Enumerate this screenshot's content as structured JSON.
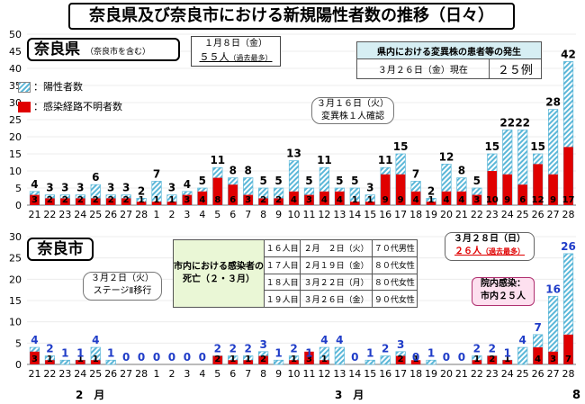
{
  "title": "奈良県及び奈良市における新規陽性者数の推移（日々）",
  "legend": {
    "positive": "：陽性者数",
    "unknown": "：感染経路不明者数"
  },
  "colors": {
    "unknown": "#e00000",
    "positive_stripe": "#5bb7d8",
    "positive_bg": "#ffffff",
    "label_blue": "#1f3cc8"
  },
  "months": [
    "2　月",
    "3　月"
  ],
  "page_number": "8",
  "prefecture": {
    "name": "奈良県",
    "sub": "（奈良市を含む）",
    "max_line1": "１月８日（金）",
    "max_value": "５５人",
    "max_suffix": "（過去最多）",
    "variant_table": {
      "header": "県内における変異株の患者等の発生",
      "date": "３月２６日（金）現在",
      "count": "２５例"
    },
    "callout_line1": "３月１６日（火）",
    "callout_line2": "変異株１人確認"
  },
  "city": {
    "name": "奈良市",
    "callout_line1": "３月２日（火）",
    "callout_line2": "ステージⅡ移行",
    "death_header": "市内における感染者の死亡（２・３月）",
    "deaths": [
      [
        "１６人目",
        "２月　２日（火）",
        "７０代男性"
      ],
      [
        "１７人目",
        "２月１９日（金）",
        "８０代女性"
      ],
      [
        "１８人目",
        "３月２２日（月）",
        "８０代女性"
      ],
      [
        "１９人目",
        "３月２６日（金）",
        "９０代女性"
      ]
    ],
    "day28_line1": "３月２８日（日）",
    "day28_value": "２６人",
    "day28_suffix": "（過去最多）",
    "incluster_line1": "院内感染：",
    "incluster_line2": "市内２５人"
  },
  "chart_data": [
    {
      "type": "bar",
      "title": "奈良県",
      "categories": [
        "21",
        "22",
        "23",
        "24",
        "25",
        "26",
        "27",
        "28",
        "1",
        "2",
        "3",
        "4",
        "5",
        "6",
        "7",
        "8",
        "9",
        "10",
        "11",
        "12",
        "13",
        "14",
        "15",
        "16",
        "17",
        "18",
        "19",
        "20",
        "21",
        "22",
        "23",
        "24",
        "25",
        "26",
        "27",
        "28"
      ],
      "ylim": [
        0,
        50
      ],
      "yticks": [
        0,
        5,
        10,
        15,
        20,
        25,
        30,
        35,
        40,
        45,
        50
      ],
      "series": [
        {
          "name": "陽性者数",
          "values": [
            4,
            3,
            3,
            3,
            6,
            3,
            3,
            2,
            7,
            3,
            4,
            5,
            11,
            8,
            8,
            5,
            5,
            13,
            5,
            11,
            5,
            5,
            3,
            11,
            15,
            7,
            2,
            12,
            8,
            5,
            15,
            22,
            22,
            15,
            28,
            42
          ]
        },
        {
          "name": "感染経路不明者数",
          "values": [
            3,
            2,
            2,
            2,
            2,
            2,
            2,
            1,
            1,
            1,
            3,
            4,
            8,
            6,
            3,
            2,
            2,
            4,
            3,
            4,
            4,
            1,
            1,
            9,
            9,
            4,
            1,
            4,
            4,
            3,
            10,
            9,
            6,
            12,
            9,
            17
          ]
        }
      ]
    },
    {
      "type": "bar",
      "title": "奈良市",
      "categories": [
        "21",
        "22",
        "23",
        "24",
        "25",
        "26",
        "27",
        "28",
        "1",
        "2",
        "3",
        "4",
        "5",
        "6",
        "7",
        "8",
        "9",
        "10",
        "11",
        "12",
        "13",
        "14",
        "15",
        "16",
        "17",
        "18",
        "19",
        "20",
        "21",
        "22",
        "23",
        "24",
        "25",
        "26",
        "27",
        "28"
      ],
      "ylim": [
        0,
        30
      ],
      "yticks": [
        0,
        5,
        10,
        15,
        20,
        25,
        30
      ],
      "series": [
        {
          "name": "陽性者数",
          "values": [
            4,
            2,
            1,
            1,
            4,
            1,
            0,
            0,
            0,
            0,
            0,
            0,
            2,
            2,
            2,
            3,
            1,
            2,
            1,
            4,
            4,
            0,
            1,
            2,
            3,
            0,
            1,
            0,
            0,
            2,
            2,
            1,
            4,
            7,
            16,
            26
          ]
        },
        {
          "name": "感染経路不明者数",
          "values": [
            3,
            1,
            0,
            1,
            1,
            0,
            0,
            0,
            0,
            0,
            0,
            0,
            2,
            1,
            1,
            2,
            0,
            1,
            3,
            1,
            0,
            0,
            0,
            0,
            2,
            1,
            0,
            0,
            0,
            1,
            2,
            1,
            0,
            4,
            3,
            7
          ]
        }
      ]
    }
  ]
}
